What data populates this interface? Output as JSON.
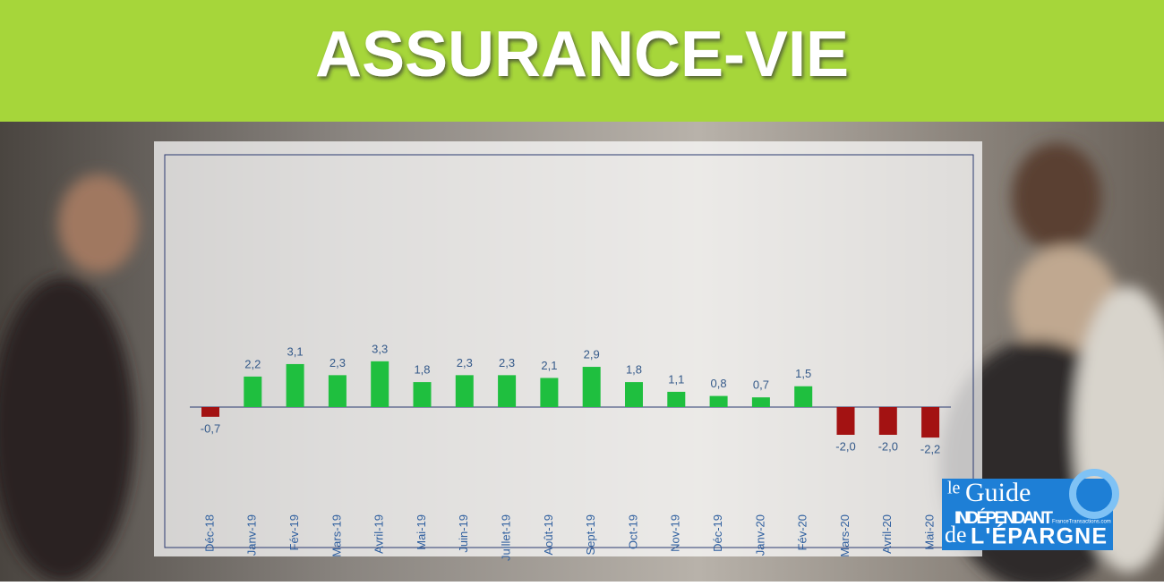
{
  "header": {
    "title": "ASSURANCE-VIE"
  },
  "chart_data": {
    "type": "bar",
    "categories": [
      "Déc-18",
      "Janv-19",
      "Fév-19",
      "Mars-19",
      "Avril-19",
      "Mai-19",
      "Juin-19",
      "Juillet-19",
      "Août-19",
      "Sept-19",
      "Oct-19",
      "Nov-19",
      "Déc-19",
      "Janv-20",
      "Fév-20",
      "Mars-20",
      "Avril-20",
      "Mai-20"
    ],
    "values": [
      -0.7,
      2.2,
      3.1,
      2.3,
      3.3,
      1.8,
      2.3,
      2.3,
      2.1,
      2.9,
      1.8,
      1.1,
      0.8,
      0.7,
      1.5,
      -2.0,
      -2.0,
      -2.2
    ],
    "value_labels": [
      "-0,7",
      "2,2",
      "3,1",
      "2,3",
      "3,3",
      "1,8",
      "2,3",
      "2,3",
      "2,1",
      "2,9",
      "1,8",
      "1,1",
      "0,8",
      "0,7",
      "1,5",
      "-2,0",
      "-2,0",
      "-2,2"
    ],
    "colors": [
      "#a31212",
      "#1fbf3f",
      "#1fbf3f",
      "#1fbf3f",
      "#1fbf3f",
      "#1fbf3f",
      "#1fbf3f",
      "#1fbf3f",
      "#1fbf3f",
      "#1fbf3f",
      "#1fbf3f",
      "#1fbf3f",
      "#1fbf3f",
      "#1fbf3f",
      "#1fbf3f",
      "#a31212",
      "#a31212",
      "#a31212"
    ]
  },
  "logo": {
    "line1": "le",
    "line2": "Guide",
    "line3": "INDÉPENDANT",
    "line4": "de",
    "line5": "L'ÉPARGNE",
    "site": "FranceTransactions.com"
  }
}
